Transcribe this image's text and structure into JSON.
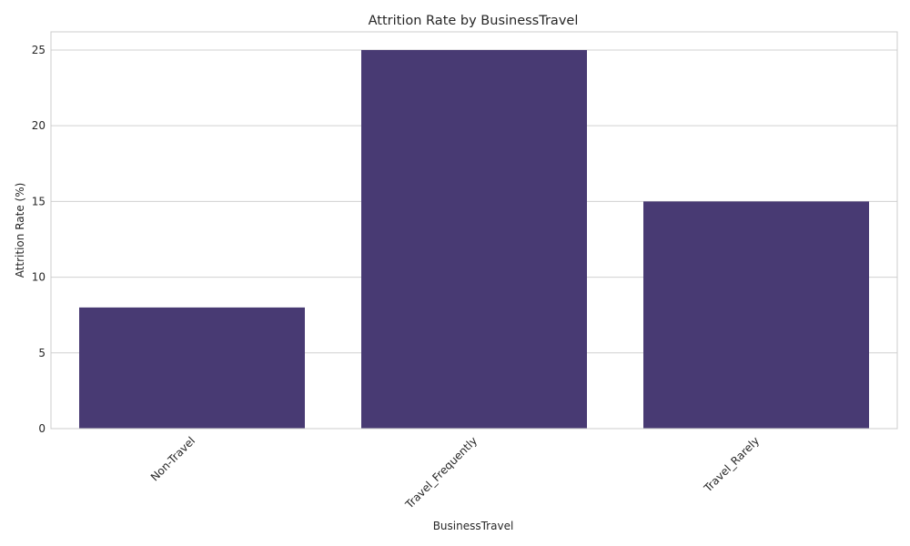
{
  "chart_data": {
    "type": "bar",
    "title": "Attrition Rate by BusinessTravel",
    "xlabel": "BusinessTravel",
    "ylabel": "Attrition Rate (%)",
    "categories": [
      "Non-Travel",
      "Travel_Frequently",
      "Travel_Rarely"
    ],
    "values": [
      8,
      25,
      15
    ],
    "ylim": [
      0,
      26.2
    ],
    "yticks": [
      0,
      5,
      10,
      15,
      20,
      25
    ],
    "grid": "horizontal",
    "bar_color": "#483a73",
    "x_tick_rotation_deg": 45
  }
}
